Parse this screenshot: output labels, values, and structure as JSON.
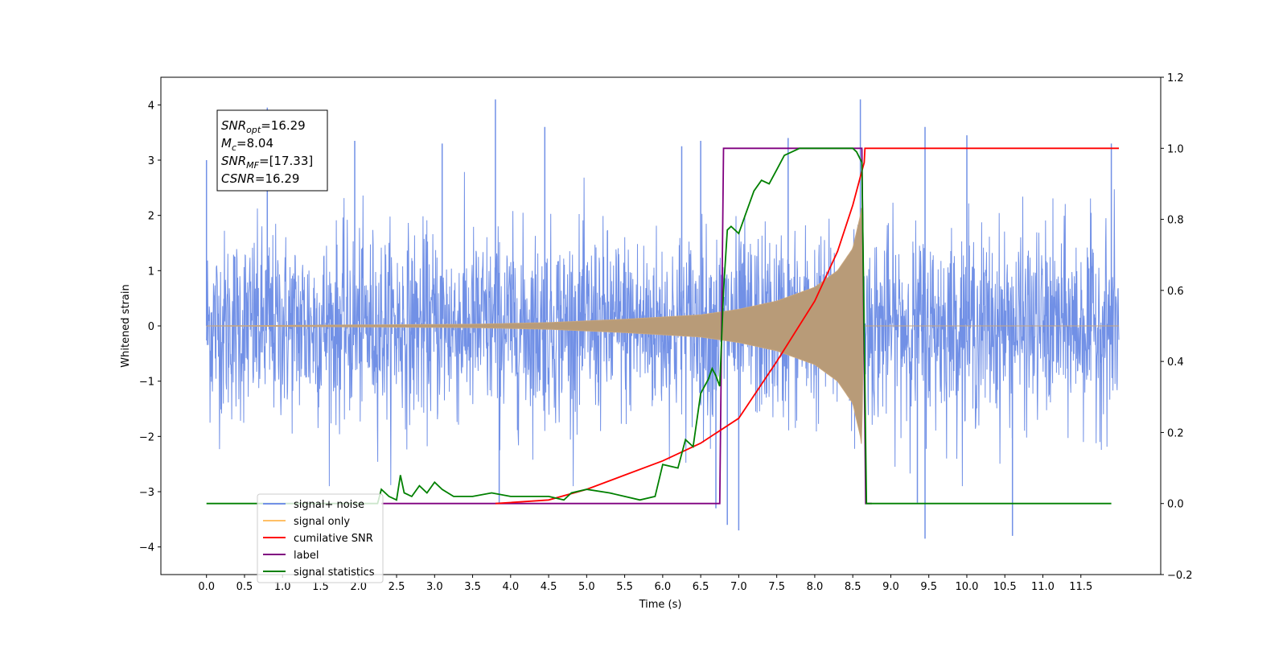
{
  "chart_data": {
    "type": "line",
    "xlabel": "Time (s)",
    "ylabel": "Whitened strain",
    "xlim": [
      -0.6,
      12.55
    ],
    "ylim": [
      -4.5,
      4.5
    ],
    "ylim_right": [
      -0.2,
      1.2
    ],
    "x_ticks": [
      "0.0",
      "0.5",
      "1.0",
      "1.5",
      "2.0",
      "2.5",
      "3.0",
      "3.5",
      "4.0",
      "4.5",
      "5.0",
      "5.5",
      "6.0",
      "6.5",
      "7.0",
      "7.5",
      "8.0",
      "8.5",
      "9.0",
      "9.5",
      "10.0",
      "10.5",
      "11.0",
      "11.5"
    ],
    "y_ticks": [
      "−4",
      "−3",
      "−2",
      "−1",
      "0",
      "1",
      "2",
      "3",
      "4"
    ],
    "y_right_ticks": [
      "−0.2",
      "0.0",
      "0.2",
      "0.4",
      "0.6",
      "0.8",
      "1.0",
      "1.2"
    ],
    "grid": false,
    "legend_position": "lower-left",
    "legend": [
      {
        "label": "signal+ noise",
        "color": "#7190e6"
      },
      {
        "label": "signal only",
        "color": "#ffbf66"
      },
      {
        "label": "cumilative SNR",
        "color": "#ff0000"
      },
      {
        "label": "label",
        "color": "#800080"
      },
      {
        "label": "signal statistics",
        "color": "#008000"
      }
    ],
    "annotation": {
      "lines": [
        {
          "base": "SNR",
          "sub": "opt",
          "rest": "=16.29"
        },
        {
          "base": "M",
          "sub": "c",
          "rest": "=8.04"
        },
        {
          "base": "SNR",
          "sub": "MF",
          "rest": "=[17.33]"
        },
        {
          "base": "CSNR",
          "sub": "",
          "rest": "=16.29"
        }
      ]
    },
    "series": [
      {
        "name": "signal+ noise",
        "axis": "left",
        "color": "#7190e6",
        "x_range": [
          0.0,
          12.0
        ],
        "noise_std": 0.85,
        "peaks": [
          [
            0.0,
            3.0
          ],
          [
            0.8,
            3.95
          ],
          [
            1.95,
            3.35
          ],
          [
            3.1,
            3.3
          ],
          [
            3.8,
            4.1
          ],
          [
            4.45,
            3.6
          ],
          [
            6.25,
            3.25
          ],
          [
            6.5,
            3.35
          ],
          [
            7.65,
            3.4
          ],
          [
            8.6,
            4.1
          ],
          [
            9.45,
            3.6
          ],
          [
            10.0,
            3.45
          ],
          [
            11.9,
            3.3
          ]
        ],
        "troughs": [
          [
            3.85,
            -3.2
          ],
          [
            6.7,
            -3.3
          ],
          [
            6.85,
            -3.6
          ],
          [
            7.0,
            -3.7
          ],
          [
            9.35,
            -3.2
          ],
          [
            9.45,
            -3.85
          ],
          [
            10.6,
            -3.8
          ]
        ]
      },
      {
        "name": "signal only",
        "axis": "left",
        "color": "#ffbf66",
        "x_range": [
          0.0,
          12.0
        ],
        "merger_time": 8.62,
        "envelope": [
          [
            0.0,
            0.0
          ],
          [
            3.5,
            0.03
          ],
          [
            4.5,
            0.06
          ],
          [
            5.5,
            0.12
          ],
          [
            6.5,
            0.2
          ],
          [
            7.0,
            0.3
          ],
          [
            7.5,
            0.45
          ],
          [
            8.0,
            0.7
          ],
          [
            8.3,
            1.0
          ],
          [
            8.5,
            1.4
          ],
          [
            8.6,
            2.0
          ],
          [
            8.62,
            2.2
          ],
          [
            8.64,
            0.0
          ]
        ]
      },
      {
        "name": "cumilative SNR",
        "axis": "right",
        "color": "#ff0000",
        "points": [
          [
            3.8,
            0.0
          ],
          [
            4.5,
            0.01
          ],
          [
            5.0,
            0.04
          ],
          [
            5.5,
            0.08
          ],
          [
            6.0,
            0.12
          ],
          [
            6.5,
            0.17
          ],
          [
            7.0,
            0.24
          ],
          [
            7.5,
            0.4
          ],
          [
            8.0,
            0.57
          ],
          [
            8.3,
            0.71
          ],
          [
            8.5,
            0.84
          ],
          [
            8.6,
            0.92
          ],
          [
            8.65,
            0.96
          ],
          [
            8.66,
            1.0
          ],
          [
            12.0,
            1.0
          ]
        ]
      },
      {
        "name": "label",
        "axis": "right",
        "color": "#800080",
        "points": [
          [
            2.3,
            0.0
          ],
          [
            6.75,
            0.0
          ],
          [
            6.8,
            1.0
          ],
          [
            8.62,
            1.0
          ],
          [
            8.67,
            0.0
          ],
          [
            8.75,
            0.0
          ]
        ]
      },
      {
        "name": "signal statistics",
        "axis": "right",
        "color": "#008000",
        "points": [
          [
            0.0,
            0.0
          ],
          [
            2.25,
            0.0
          ],
          [
            2.3,
            0.04
          ],
          [
            2.4,
            0.02
          ],
          [
            2.5,
            0.01
          ],
          [
            2.55,
            0.08
          ],
          [
            2.6,
            0.03
          ],
          [
            2.7,
            0.02
          ],
          [
            2.8,
            0.05
          ],
          [
            2.9,
            0.03
          ],
          [
            3.0,
            0.06
          ],
          [
            3.1,
            0.04
          ],
          [
            3.25,
            0.02
          ],
          [
            3.5,
            0.02
          ],
          [
            3.75,
            0.03
          ],
          [
            4.0,
            0.02
          ],
          [
            4.3,
            0.02
          ],
          [
            4.5,
            0.02
          ],
          [
            4.7,
            0.01
          ],
          [
            4.8,
            0.03
          ],
          [
            5.0,
            0.04
          ],
          [
            5.3,
            0.03
          ],
          [
            5.5,
            0.02
          ],
          [
            5.7,
            0.01
          ],
          [
            5.9,
            0.02
          ],
          [
            6.0,
            0.11
          ],
          [
            6.2,
            0.1
          ],
          [
            6.3,
            0.18
          ],
          [
            6.4,
            0.16
          ],
          [
            6.5,
            0.31
          ],
          [
            6.6,
            0.35
          ],
          [
            6.65,
            0.38
          ],
          [
            6.7,
            0.36
          ],
          [
            6.75,
            0.33
          ],
          [
            6.8,
            0.6
          ],
          [
            6.85,
            0.77
          ],
          [
            6.9,
            0.78
          ],
          [
            7.0,
            0.76
          ],
          [
            7.1,
            0.82
          ],
          [
            7.2,
            0.88
          ],
          [
            7.3,
            0.91
          ],
          [
            7.4,
            0.9
          ],
          [
            7.5,
            0.94
          ],
          [
            7.6,
            0.98
          ],
          [
            7.7,
            0.99
          ],
          [
            7.8,
            1.0
          ],
          [
            8.5,
            1.0
          ],
          [
            8.55,
            0.99
          ],
          [
            8.62,
            0.96
          ],
          [
            8.68,
            0.0
          ],
          [
            11.9,
            0.0
          ]
        ]
      }
    ]
  }
}
